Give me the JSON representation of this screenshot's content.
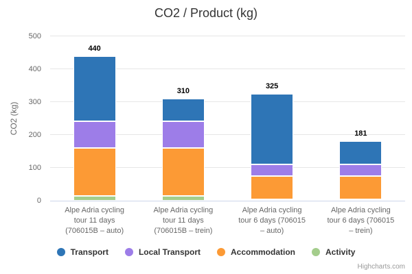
{
  "chart_data": {
    "type": "bar",
    "stacked": true,
    "title": "CO2 / Product (kg)",
    "ylabel": "CO2 (kg)",
    "xlabel": "",
    "ylim": [
      0,
      500
    ],
    "yticks": [
      0,
      100,
      200,
      300,
      400,
      500
    ],
    "grid": true,
    "legend_position": "bottom",
    "categories": [
      "Alpe Adria cycling\ntour 11 days\n(706015B – auto)",
      "Alpe Adria cycling\ntour 11 days\n(706015B – trein)",
      "Alpe Adria cycling\ntour 6 days (706015\n– auto)",
      "Alpe Adria cycling\ntour 6 days (706015\n– trein)"
    ],
    "series": [
      {
        "name": "Transport",
        "color": "#2e75b6",
        "values": [
          198,
          68,
          215,
          71
        ]
      },
      {
        "name": "Local Transport",
        "color": "#9d7de8",
        "values": [
          82,
          82,
          35,
          35
        ]
      },
      {
        "name": "Accommodation",
        "color": "#fc9a35",
        "values": [
          145,
          145,
          70,
          70
        ]
      },
      {
        "name": "Activity",
        "color": "#a4cd8c",
        "values": [
          15,
          15,
          5,
          5
        ]
      }
    ],
    "stack_order_bottom_to_top": [
      "Activity",
      "Accommodation",
      "Local Transport",
      "Transport"
    ],
    "stack_totals": [
      "440",
      "310",
      "325",
      "181"
    ],
    "axis_line_color": "#ccd6eb",
    "grid_color": "#e6e6e6"
  },
  "credits": {
    "label": "Highcharts.com"
  }
}
